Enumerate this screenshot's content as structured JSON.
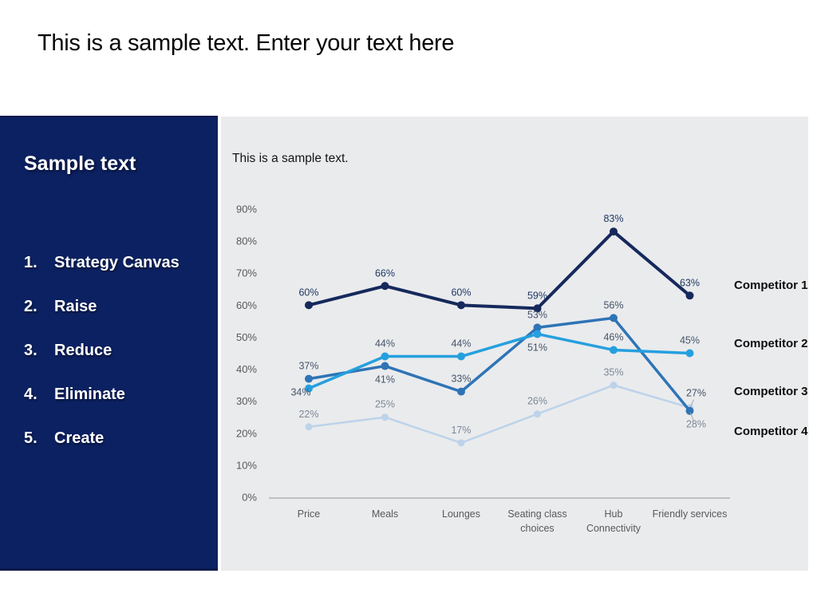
{
  "slide": {
    "title": "This is a sample text. Enter your text here"
  },
  "sidebar": {
    "heading": "Sample text",
    "items": [
      {
        "num": "1.",
        "label": "Strategy Canvas"
      },
      {
        "num": "2.",
        "label": "Raise"
      },
      {
        "num": "3.",
        "label": "Reduce"
      },
      {
        "num": "4.",
        "label": "Eliminate"
      },
      {
        "num": "5.",
        "label": "Create"
      }
    ]
  },
  "panel": {
    "caption": "This is a sample text."
  },
  "chart_data": {
    "type": "line",
    "title": "This is a sample text.",
    "categories": [
      "Price",
      "Meals",
      "Lounges",
      "Seating class\nchoices",
      "Hub\nConnectivity",
      "Friendly services"
    ],
    "y_tick_labels": [
      "0%",
      "10%",
      "20%",
      "30%",
      "40%",
      "50%",
      "60%",
      "70%",
      "80%",
      "90%"
    ],
    "ylim": [
      0,
      90
    ],
    "grid": false,
    "legend_position": "right",
    "colors": {
      "axis_line": "#a6a6a6",
      "tick_text": "#595959",
      "category_text": "#595959",
      "legend_text": "#0d0d0d",
      "leader_line": "#a6a6a6"
    },
    "series": [
      {
        "name": "Competitor 1",
        "color": "#16295c",
        "label_color": "#1f3864",
        "values": [
          60,
          66,
          60,
          59,
          83,
          63
        ],
        "data_labels": [
          "60%",
          "66%",
          "60%",
          "59%",
          "83%",
          "63%"
        ],
        "label_pos": [
          "above",
          "above",
          "above",
          "above",
          "above",
          "above"
        ]
      },
      {
        "name": "Competitor 2",
        "color": "#25a0de",
        "label_color": "#44546a",
        "values": [
          34,
          44,
          44,
          51,
          46,
          45
        ],
        "data_labels": [
          "34%",
          "44%",
          "44%",
          "51%",
          "46%",
          "45%"
        ],
        "label_pos": [
          "left",
          "above",
          "above",
          "below",
          "above",
          "above"
        ]
      },
      {
        "name": "Competitor 3",
        "color": "#2e74b6",
        "label_color": "#44546a",
        "values": [
          37,
          41,
          33,
          53,
          56,
          27
        ],
        "data_labels": [
          "37%",
          "41%",
          "33%",
          "53%",
          "56%",
          "27%"
        ],
        "label_pos": [
          "above",
          "below",
          "above",
          "above",
          "above",
          "above-leader"
        ]
      },
      {
        "name": "Competitor 4",
        "color": "#bdd3ea",
        "label_color": "#7d8897",
        "values": [
          22,
          25,
          17,
          26,
          35,
          28
        ],
        "data_labels": [
          "22%",
          "25%",
          "17%",
          "26%",
          "35%",
          "28%"
        ],
        "label_pos": [
          "above",
          "above",
          "above",
          "above",
          "above",
          "below-leader"
        ]
      }
    ]
  }
}
